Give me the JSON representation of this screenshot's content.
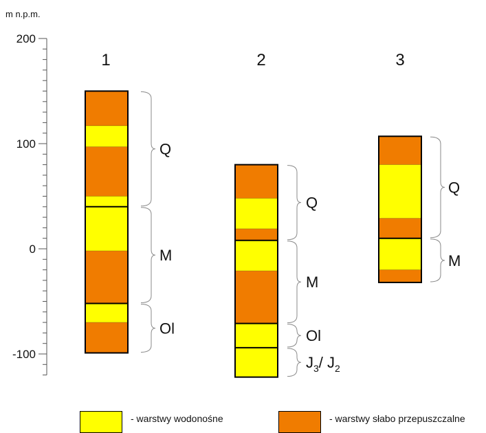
{
  "axis": {
    "unit_label": "m n.p.m.",
    "min": -120,
    "max": 200,
    "major_ticks": [
      200,
      100,
      0,
      -100
    ],
    "major_tick_labels": [
      "200",
      "100",
      "0",
      "-100"
    ],
    "minor_tick_step": 10
  },
  "colors": {
    "aquifer": "#ffff00",
    "aquitard": "#f07c00",
    "outline": "#000000",
    "brace": "#8a8a8a"
  },
  "columns": [
    {
      "label": "1",
      "layers": [
        {
          "top": 150,
          "bottom": 117,
          "type": "aquitard"
        },
        {
          "top": 117,
          "bottom": 97,
          "type": "aquifer"
        },
        {
          "top": 97,
          "bottom": 50,
          "type": "aquitard"
        },
        {
          "top": 50,
          "bottom": 40,
          "type": "aquifer"
        },
        {
          "top": 40,
          "bottom": -2,
          "type": "aquifer"
        },
        {
          "top": -2,
          "bottom": -52,
          "type": "aquitard"
        },
        {
          "top": -52,
          "bottom": -70,
          "type": "aquifer"
        },
        {
          "top": -70,
          "bottom": -99,
          "type": "aquitard"
        }
      ],
      "boundaries": [
        40,
        -52
      ],
      "units": [
        {
          "label": "Q",
          "top": 150,
          "bottom": 40
        },
        {
          "label": "M",
          "top": 40,
          "bottom": -52
        },
        {
          "label": "Ol",
          "top": -52,
          "bottom": -99
        }
      ]
    },
    {
      "label": "2",
      "layers": [
        {
          "top": 80,
          "bottom": 48,
          "type": "aquitard"
        },
        {
          "top": 48,
          "bottom": 19,
          "type": "aquifer"
        },
        {
          "top": 19,
          "bottom": 8,
          "type": "aquitard"
        },
        {
          "top": 8,
          "bottom": -21,
          "type": "aquifer"
        },
        {
          "top": -21,
          "bottom": -71,
          "type": "aquitard"
        },
        {
          "top": -71,
          "bottom": -94,
          "type": "aquifer"
        },
        {
          "top": -94,
          "bottom": -122,
          "type": "aquifer"
        }
      ],
      "boundaries": [
        8,
        -71,
        -94
      ],
      "units": [
        {
          "label": "Q",
          "top": 80,
          "bottom": 8
        },
        {
          "label": "M",
          "top": 8,
          "bottom": -71
        },
        {
          "label": "Ol",
          "top": -71,
          "bottom": -94
        },
        {
          "label": "J",
          "sub": "3",
          "label2": "/ J",
          "sub2": "2",
          "top": -94,
          "bottom": -122
        }
      ]
    },
    {
      "label": "3",
      "layers": [
        {
          "top": 107,
          "bottom": 80,
          "type": "aquitard"
        },
        {
          "top": 80,
          "bottom": 29,
          "type": "aquifer"
        },
        {
          "top": 29,
          "bottom": 10,
          "type": "aquitard"
        },
        {
          "top": 10,
          "bottom": -20,
          "type": "aquifer"
        },
        {
          "top": -20,
          "bottom": -32,
          "type": "aquitard"
        }
      ],
      "boundaries": [
        10
      ],
      "units": [
        {
          "label": "Q",
          "top": 107,
          "bottom": 10
        },
        {
          "label": "M",
          "top": 10,
          "bottom": -32
        }
      ]
    }
  ],
  "legend": {
    "aquifer_label": "- warstwy wodonośne",
    "aquitard_label": "- warstwy słabo przepuszczalne"
  }
}
